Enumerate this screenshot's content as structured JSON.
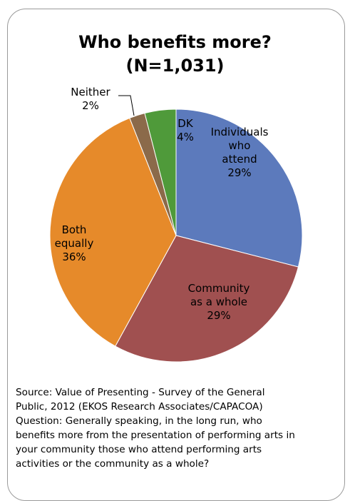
{
  "chart_data": {
    "type": "pie",
    "title_line1": "Who benefits more?",
    "title_line2": "(N=1,031)",
    "slices": [
      {
        "lines": [
          "Individuals",
          "who",
          "attend",
          "29%"
        ],
        "value": 29,
        "color": "#5c7abc"
      },
      {
        "lines": [
          "Community",
          "as a whole",
          "29%"
        ],
        "value": 29,
        "color": "#a05050"
      },
      {
        "lines": [
          "Both",
          "equally",
          "36%"
        ],
        "value": 36,
        "color": "#e68a2a"
      },
      {
        "lines": [
          "Neither",
          "2%"
        ],
        "value": 2,
        "color": "#8b6a4a"
      },
      {
        "lines": [
          "DK",
          "4%"
        ],
        "value": 4,
        "color": "#4f9a3a"
      }
    ]
  },
  "caption": {
    "lines": [
      "Source: Value of Presenting - Survey of the General",
      "Public, 2012 (EKOS Research Associates/CAPACOA)",
      "Question: Generally speaking, in the long run, who",
      "benefits more from the presentation of performing arts in",
      "your community those who attend performing arts",
      "activities or the community as a whole?"
    ]
  }
}
